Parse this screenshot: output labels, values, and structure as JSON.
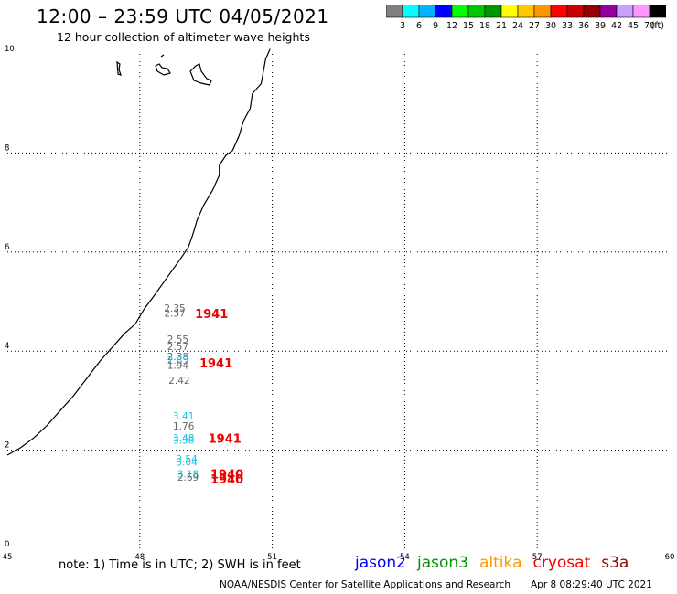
{
  "header": {
    "title": "12:00 – 23:59 UTC 04/05/2021",
    "subtitle": "12 hour collection of altimeter wave heights"
  },
  "colorbar": {
    "colors": [
      "#808080",
      "#00ffff",
      "#00b4ff",
      "#0000ff",
      "#00ff00",
      "#00c800",
      "#009600",
      "#ffff00",
      "#ffc800",
      "#ff9600",
      "#ff0000",
      "#c80000",
      "#960000",
      "#9600a0",
      "#c8a0ff",
      "#ff96ff",
      "#000000"
    ],
    "labels": [
      "3",
      "6",
      "9",
      "12",
      "15",
      "18",
      "21",
      "24",
      "27",
      "30",
      "33",
      "36",
      "39",
      "42",
      "45",
      "70"
    ],
    "unit": "(ft)"
  },
  "map": {
    "x_ticks": [
      "45",
      "48",
      "51",
      "54",
      "57",
      "60"
    ],
    "y_ticks": [
      "0",
      "2",
      "4",
      "6",
      "8",
      "10"
    ],
    "lon_range": [
      45,
      60
    ],
    "lat_range": [
      0,
      10
    ],
    "points": [
      {
        "lon": 48.55,
        "lat": 4.8,
        "text": "2.35",
        "color": "#666666"
      },
      {
        "lon": 48.55,
        "lat": 4.7,
        "text": "2.37",
        "color": "#666666"
      },
      {
        "lon": 48.62,
        "lat": 4.17,
        "text": "2.55",
        "color": "#666666"
      },
      {
        "lon": 48.62,
        "lat": 4.02,
        "text": "2.57",
        "color": "#666666"
      },
      {
        "lon": 48.62,
        "lat": 3.82,
        "text": "2.38",
        "color": "#666666"
      },
      {
        "lon": 48.62,
        "lat": 3.75,
        "text": "2.65",
        "color": "#20c8e0"
      },
      {
        "lon": 48.62,
        "lat": 3.64,
        "text": "1.94",
        "color": "#666666"
      },
      {
        "lon": 48.65,
        "lat": 3.34,
        "text": "2.42",
        "color": "#666666"
      },
      {
        "lon": 48.75,
        "lat": 2.62,
        "text": "3.41",
        "color": "#20c8e0"
      },
      {
        "lon": 48.75,
        "lat": 2.42,
        "text": "1.76",
        "color": "#666666"
      },
      {
        "lon": 48.75,
        "lat": 2.18,
        "text": "3.48",
        "color": "#20c8e0"
      },
      {
        "lon": 48.75,
        "lat": 2.13,
        "text": "3.38",
        "color": "#20c8e0"
      },
      {
        "lon": 48.82,
        "lat": 1.75,
        "text": "3.54",
        "color": "#20c8e0"
      },
      {
        "lon": 48.82,
        "lat": 1.69,
        "text": "3.04",
        "color": "#20c8e0"
      },
      {
        "lon": 48.85,
        "lat": 1.45,
        "text": "3.18",
        "color": "#20c8e0"
      },
      {
        "lon": 48.85,
        "lat": 1.38,
        "text": "2.69",
        "color": "#666666"
      }
    ],
    "time_labels": [
      {
        "lon": 49.25,
        "lat": 4.67,
        "text": "1941",
        "color": "#ee0000"
      },
      {
        "lon": 49.35,
        "lat": 3.67,
        "text": "1941",
        "color": "#ee0000"
      },
      {
        "lon": 49.55,
        "lat": 2.15,
        "text": "1941",
        "color": "#ee0000"
      },
      {
        "lon": 49.6,
        "lat": 1.43,
        "text": "1940",
        "color": "#ee0000"
      },
      {
        "lon": 49.6,
        "lat": 1.33,
        "text": "1940",
        "color": "#ee0000"
      }
    ]
  },
  "footer": {
    "note": "note: 1) Time is in UTC; 2) SWH is in feet",
    "legend": [
      {
        "name": "jason2",
        "color": "#0000ff"
      },
      {
        "name": "jason3",
        "color": "#009600"
      },
      {
        "name": "altika",
        "color": "#ff9600"
      },
      {
        "name": "cryosat",
        "color": "#ee0000"
      },
      {
        "name": "s3a",
        "color": "#960000"
      }
    ],
    "credit": "NOAA/NESDIS Center for Satellite Applications and Research",
    "timestamp": "Apr  8 08:29:40 UTC 2021"
  }
}
